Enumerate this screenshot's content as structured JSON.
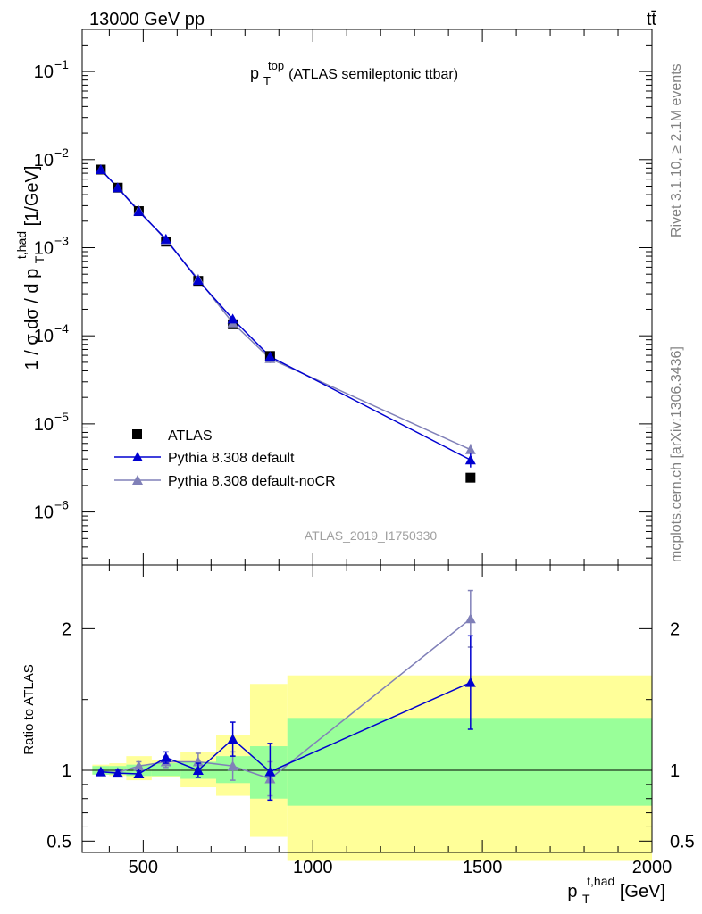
{
  "header": {
    "collision": "13000 GeV pp",
    "process": "tt̄"
  },
  "side_labels": {
    "rivet": "Rivet 3.1.10, ≥ 2.1M events",
    "mcplots": "mcplots.cern.ch [arXiv:1306.3436]"
  },
  "watermark": "ATLAS_2019_I1750330",
  "colors": {
    "atlas": "#000000",
    "pythia_default": "#0000d0",
    "pythia_nocr": "#8080b8",
    "band_inner": "#99ff99",
    "band_outer": "#ffff99"
  },
  "chart_data": [
    {
      "type": "scatter",
      "panel": "main",
      "title": {
        "main": "p",
        "sub": "T",
        "sup": "top",
        "rest": " (ATLAS semileptonic ttbar)"
      },
      "ylabel": {
        "pre": "1 / σ dσ / d p",
        "sub": "T",
        "sup": "t,had",
        "post": " [1/GeV]"
      },
      "yscale": "log",
      "ylim": [
        2.5e-07,
        0.3
      ],
      "xlim": [
        320,
        2000
      ],
      "y_ticks": [
        {
          "v": 1e-06,
          "base": "10",
          "exp": "−6"
        },
        {
          "v": 1e-05,
          "base": "10",
          "exp": "−5"
        },
        {
          "v": 0.0001,
          "base": "10",
          "exp": "−4"
        },
        {
          "v": 0.001,
          "base": "10",
          "exp": "−3"
        },
        {
          "v": 0.01,
          "base": "10",
          "exp": "−2"
        },
        {
          "v": 0.1,
          "base": "10",
          "exp": "−1"
        }
      ],
      "legend_position": "bottom-left",
      "series": [
        {
          "name": "ATLAS",
          "marker": "square",
          "x": [
            375,
            425,
            487,
            567,
            662,
            764,
            874,
            1465
          ],
          "y": [
            0.0077,
            0.0048,
            0.0026,
            0.00117,
            0.00042,
            0.000135,
            5.9e-05,
            2.45e-06
          ]
        },
        {
          "name": "Pythia 8.308 default",
          "marker": "triangle",
          "x": [
            375,
            425,
            487,
            567,
            662,
            764,
            874,
            1465
          ],
          "y": [
            0.0077,
            0.0048,
            0.00258,
            0.00125,
            0.000425,
            0.000155,
            5.8e-05,
            3.9e-06
          ],
          "err": [
            0,
            0,
            0,
            0,
            0,
            1.2e-05,
            4e-06,
            7e-07
          ]
        },
        {
          "name": "Pythia 8.308 default-noCR",
          "marker": "triangle",
          "x": [
            375,
            425,
            487,
            567,
            662,
            764,
            874,
            1465
          ],
          "y": [
            0.0077,
            0.0048,
            0.00265,
            0.00122,
            0.00044,
            0.00014,
            5.5e-05,
            5.1e-06
          ],
          "err": [
            0,
            0,
            0,
            0,
            0,
            1e-05,
            6e-06,
            8e-07
          ]
        }
      ]
    },
    {
      "type": "line",
      "panel": "ratio",
      "ylabel": "Ratio to ATLAS",
      "xlabel": {
        "pre": "p",
        "sub": "T",
        "sup": "t,had",
        "post": " [GeV]"
      },
      "xlim": [
        320,
        2000
      ],
      "ylim": [
        0.42,
        2.45
      ],
      "x_ticks": [
        500,
        1000,
        1500,
        2000
      ],
      "y_ticks": [
        {
          "v": 0.5,
          "label": "0.5"
        },
        {
          "v": 1,
          "label": "1"
        },
        {
          "v": 2,
          "label": "2"
        }
      ],
      "bins": [
        350,
        400,
        450,
        525,
        610,
        715,
        815,
        925,
        2000
      ],
      "band_inner": [
        [
          0.97,
          1.03
        ],
        [
          0.97,
          1.03
        ],
        [
          0.96,
          1.04
        ],
        [
          0.96,
          1.05
        ],
        [
          0.94,
          1.06
        ],
        [
          0.91,
          1.1
        ],
        [
          0.8,
          1.17
        ],
        [
          0.75,
          1.37
        ]
      ],
      "band_outer": [
        [
          0.97,
          1.04
        ],
        [
          0.96,
          1.05
        ],
        [
          0.93,
          1.1
        ],
        [
          0.95,
          1.07
        ],
        [
          0.88,
          1.13
        ],
        [
          0.82,
          1.25
        ],
        [
          0.53,
          1.61
        ],
        [
          0.36,
          1.67
        ]
      ],
      "series": [
        {
          "name": "Pythia 8.308 default",
          "x": [
            375,
            425,
            487,
            567,
            662,
            764,
            874,
            1465
          ],
          "y": [
            0.99,
            0.98,
            0.975,
            1.09,
            1.0,
            1.22,
            0.99,
            1.62
          ],
          "err": [
            0.01,
            0.02,
            0.02,
            0.04,
            0.05,
            0.12,
            0.2,
            0.33
          ]
        },
        {
          "name": "Pythia 8.308 default-noCR",
          "x": [
            375,
            425,
            487,
            567,
            662,
            764,
            874,
            1465
          ],
          "y": [
            0.99,
            0.985,
            1.03,
            1.06,
            1.06,
            1.03,
            0.94,
            2.07
          ],
          "err": [
            0.01,
            0.02,
            0.03,
            0.04,
            0.06,
            0.1,
            0.12,
            0.2
          ]
        }
      ]
    }
  ]
}
